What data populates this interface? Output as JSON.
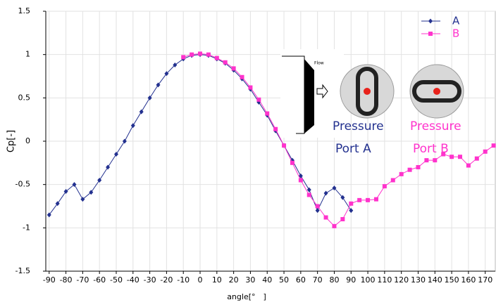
{
  "chart_data": {
    "type": "line",
    "xlabel": "angle[°　]",
    "ylabel": "Cp[-]",
    "xlim": [
      -92,
      176
    ],
    "ylim": [
      -1.5,
      1.5
    ],
    "xticks": [
      -90,
      -80,
      -70,
      -60,
      -50,
      -40,
      -30,
      -20,
      -10,
      0,
      10,
      20,
      30,
      40,
      50,
      60,
      70,
      80,
      90,
      100,
      110,
      120,
      130,
      140,
      150,
      160,
      170
    ],
    "yticks": [
      1.5,
      1,
      0.5,
      0,
      -0.5,
      -1,
      -1.5
    ],
    "grid": true,
    "legend": "upper right",
    "annotations": {
      "flow": "Flow",
      "port_a": [
        "Pressure",
        "Port  A"
      ],
      "port_b": [
        "Pressure",
        "Port  B"
      ]
    },
    "series": [
      {
        "name": "A",
        "color": "#23318f",
        "marker": "diamond",
        "x": [
          -90,
          -85,
          -80,
          -75,
          -70,
          -65,
          -60,
          -55,
          -50,
          -45,
          -40,
          -35,
          -30,
          -25,
          -20,
          -15,
          -10,
          -5,
          0,
          5,
          10,
          15,
          20,
          25,
          30,
          35,
          40,
          45,
          50,
          55,
          60,
          65,
          70,
          75,
          80,
          85,
          90
        ],
        "values": [
          -0.85,
          -0.72,
          -0.58,
          -0.5,
          -0.67,
          -0.59,
          -0.45,
          -0.3,
          -0.15,
          0.0,
          0.18,
          0.34,
          0.5,
          0.65,
          0.78,
          0.88,
          0.95,
          0.99,
          1.0,
          0.99,
          0.95,
          0.9,
          0.82,
          0.72,
          0.6,
          0.45,
          0.3,
          0.12,
          -0.05,
          -0.22,
          -0.4,
          -0.56,
          -0.8,
          -0.6,
          -0.54,
          -0.65,
          -0.8
        ]
      },
      {
        "name": "B",
        "color": "#ff33cc",
        "marker": "square",
        "x": [
          -10,
          -5,
          0,
          5,
          10,
          15,
          20,
          25,
          30,
          35,
          40,
          45,
          50,
          55,
          60,
          65,
          70,
          75,
          80,
          85,
          90,
          95,
          100,
          105,
          110,
          115,
          120,
          125,
          130,
          135,
          140,
          145,
          150,
          155,
          160,
          165,
          170,
          175
        ],
        "values": [
          0.97,
          1.0,
          1.01,
          1.0,
          0.96,
          0.91,
          0.84,
          0.74,
          0.62,
          0.48,
          0.32,
          0.14,
          -0.05,
          -0.25,
          -0.45,
          -0.62,
          -0.75,
          -0.88,
          -0.98,
          -0.9,
          -0.72,
          -0.68,
          -0.68,
          -0.67,
          -0.52,
          -0.45,
          -0.38,
          -0.33,
          -0.3,
          -0.22,
          -0.22,
          -0.15,
          -0.18,
          -0.18,
          -0.28,
          -0.2,
          -0.12,
          -0.05
        ]
      }
    ]
  }
}
